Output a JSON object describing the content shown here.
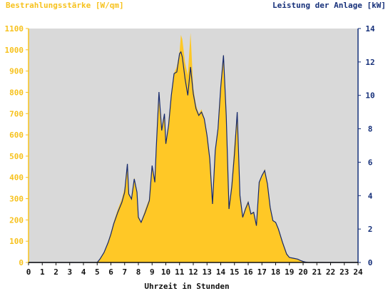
{
  "colors": {
    "left_axis": "#f7c21d",
    "right_axis": "#16307a",
    "plot_bg": "#d9d9d9",
    "fill": "#ffc826",
    "line": "#15286b",
    "axis_text": "#111111"
  },
  "chart_data": {
    "type": "area",
    "title": "",
    "left_axis_label": "Bestrahlungsstärke [W/qm]",
    "right_axis_label": "Leistung der Anlage [kW]",
    "xlabel": "Uhrzeit in Stunden",
    "xlim": [
      0,
      24
    ],
    "ylim_left": [
      0,
      1100
    ],
    "ylim_right": [
      0,
      14
    ],
    "x_ticks": [
      "0",
      "1",
      "2",
      "3",
      "4",
      "5",
      "6",
      "7",
      "8",
      "9",
      "10",
      "11",
      "12",
      "13",
      "14",
      "15",
      "16",
      "17",
      "18",
      "19",
      "20",
      "21",
      "22",
      "23",
      "24"
    ],
    "y_ticks_left": [
      "0",
      "100",
      "200",
      "300",
      "400",
      "500",
      "600",
      "700",
      "800",
      "900",
      "1000",
      "1100"
    ],
    "y_ticks_right": [
      "0",
      "2",
      "4",
      "6",
      "8",
      "10",
      "12",
      "14"
    ],
    "grid": false,
    "series": [
      {
        "name": "Bestrahlungsstärke [W/qm]",
        "axis": "left",
        "style": "area",
        "x": [
          5.0,
          5.2,
          5.5,
          5.8,
          6.0,
          6.2,
          6.5,
          6.8,
          7.0,
          7.2,
          7.3,
          7.5,
          7.7,
          7.9,
          8.0,
          8.2,
          8.5,
          8.8,
          9.0,
          9.2,
          9.3,
          9.5,
          9.7,
          9.9,
          10.0,
          10.2,
          10.4,
          10.6,
          10.8,
          11.0,
          11.1,
          11.2,
          11.4,
          11.6,
          11.8,
          12.0,
          12.2,
          12.4,
          12.6,
          12.8,
          13.0,
          13.2,
          13.4,
          13.6,
          13.8,
          14.0,
          14.2,
          14.4,
          14.6,
          14.8,
          15.0,
          15.2,
          15.4,
          15.6,
          15.8,
          16.0,
          16.2,
          16.4,
          16.6,
          16.8,
          17.0,
          17.2,
          17.4,
          17.6,
          17.8,
          18.0,
          18.2,
          18.5,
          18.8,
          19.0,
          19.3,
          19.6,
          19.8,
          20.0,
          20.2,
          20.4
        ],
        "values": [
          0,
          15,
          50,
          100,
          140,
          190,
          250,
          300,
          350,
          440,
          320,
          300,
          400,
          330,
          220,
          190,
          250,
          300,
          450,
          380,
          540,
          760,
          620,
          700,
          560,
          640,
          780,
          890,
          920,
          990,
          1070,
          1050,
          940,
          880,
          1080,
          820,
          740,
          700,
          720,
          680,
          610,
          500,
          300,
          530,
          640,
          820,
          980,
          700,
          260,
          380,
          560,
          700,
          330,
          220,
          260,
          290,
          230,
          240,
          180,
          380,
          400,
          440,
          380,
          270,
          200,
          190,
          160,
          100,
          45,
          25,
          20,
          15,
          10,
          5,
          2,
          0
        ]
      },
      {
        "name": "Leistung der Anlage [kW]",
        "axis": "right",
        "style": "line",
        "x": [
          5.0,
          5.2,
          5.5,
          5.8,
          6.0,
          6.2,
          6.5,
          6.8,
          7.0,
          7.2,
          7.3,
          7.5,
          7.7,
          7.9,
          8.0,
          8.2,
          8.5,
          8.8,
          9.0,
          9.2,
          9.3,
          9.5,
          9.7,
          9.9,
          10.0,
          10.2,
          10.4,
          10.6,
          10.8,
          11.0,
          11.1,
          11.2,
          11.4,
          11.6,
          11.8,
          12.0,
          12.2,
          12.4,
          12.6,
          12.8,
          13.0,
          13.2,
          13.4,
          13.6,
          13.8,
          14.0,
          14.2,
          14.4,
          14.6,
          14.8,
          15.0,
          15.2,
          15.4,
          15.6,
          15.8,
          16.0,
          16.2,
          16.4,
          16.6,
          16.8,
          17.0,
          17.2,
          17.4,
          17.6,
          17.8,
          18.0,
          18.2,
          18.5,
          18.8,
          19.0,
          19.3,
          19.6,
          19.8,
          20.0,
          20.2,
          20.4
        ],
        "values": [
          0,
          0.2,
          0.6,
          1.2,
          1.7,
          2.3,
          3.0,
          3.6,
          4.2,
          5.9,
          4.1,
          3.8,
          5.0,
          4.2,
          2.7,
          2.4,
          3.0,
          3.7,
          5.8,
          4.8,
          6.8,
          10.2,
          7.9,
          8.9,
          7.1,
          8.2,
          10.0,
          11.3,
          11.4,
          12.5,
          12.6,
          12.3,
          11.0,
          10.0,
          11.7,
          10.1,
          9.2,
          8.8,
          9.0,
          8.6,
          7.6,
          6.2,
          3.5,
          6.7,
          8.0,
          10.5,
          12.4,
          8.8,
          3.2,
          4.5,
          6.5,
          9.0,
          4.0,
          2.7,
          3.2,
          3.6,
          2.9,
          3.0,
          2.2,
          4.8,
          5.2,
          5.5,
          4.7,
          3.3,
          2.5,
          2.4,
          2.0,
          1.2,
          0.5,
          0.3,
          0.25,
          0.2,
          0.12,
          0.06,
          0.02,
          0
        ]
      }
    ]
  }
}
